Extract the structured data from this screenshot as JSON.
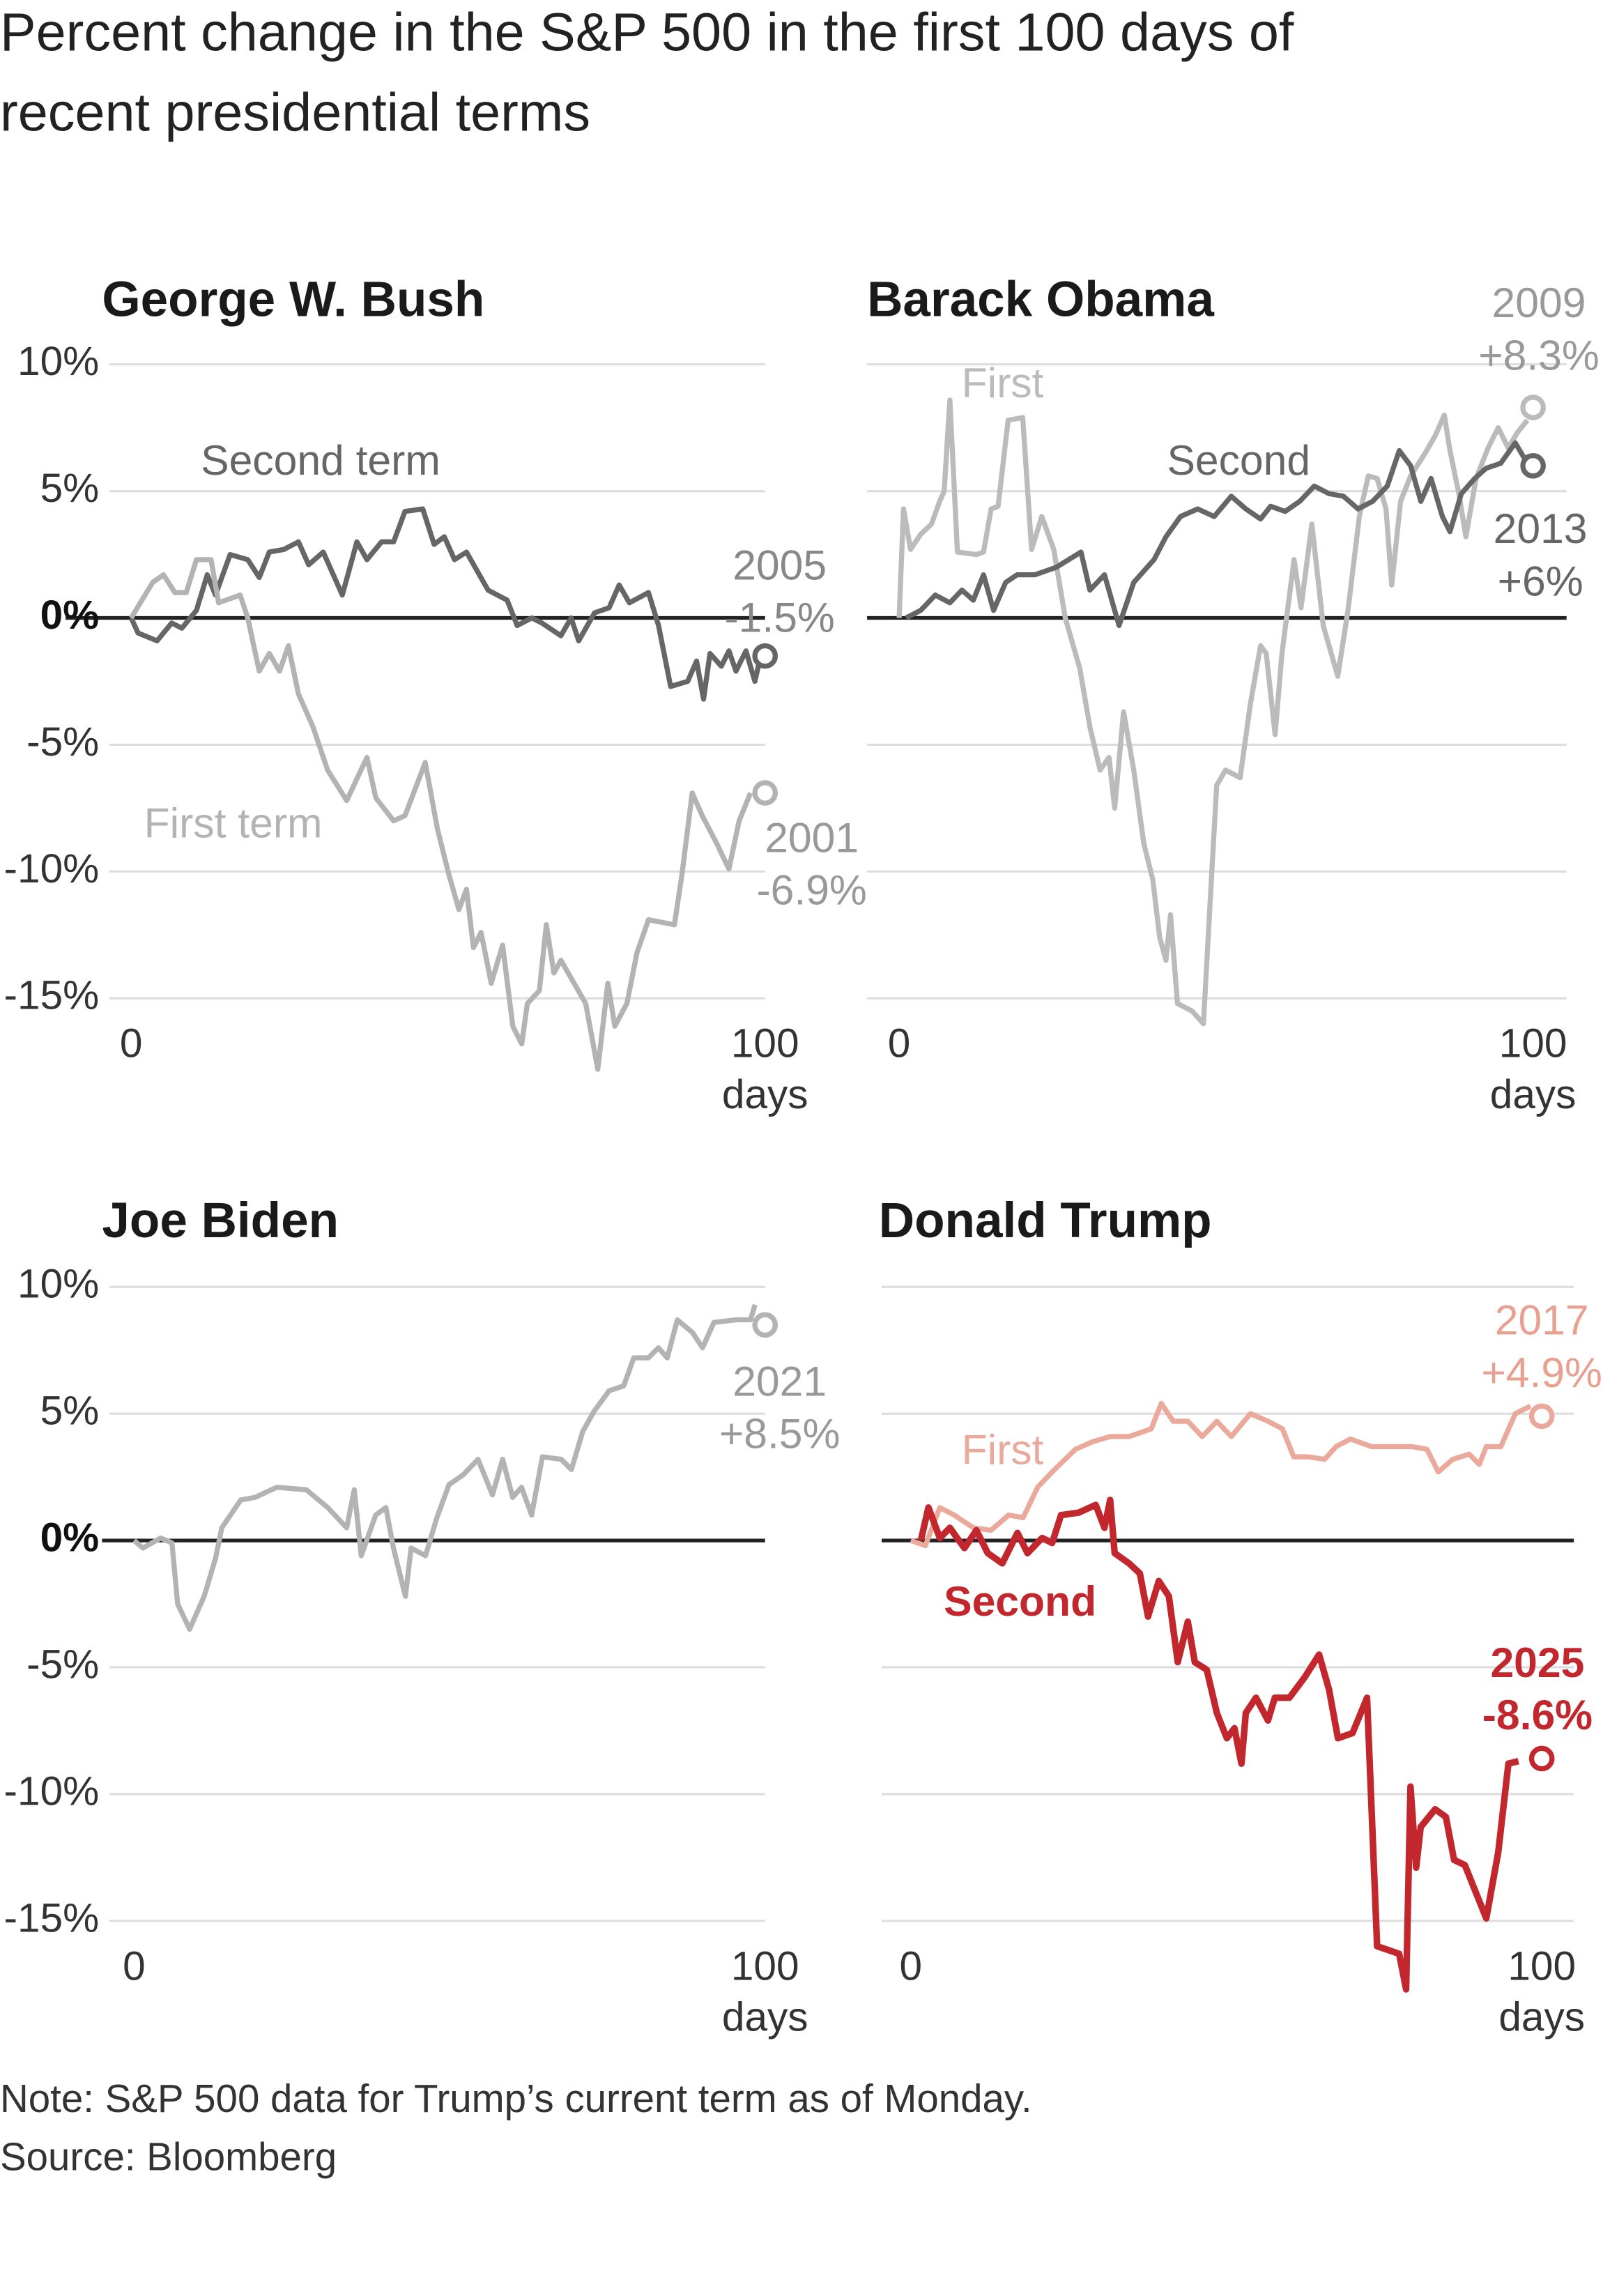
{
  "title": [
    "Percent change in the S&P 500 in the first 100 days of",
    "recent presidential terms"
  ],
  "note": "Note: S&P 500 data for Trump’s current term as of Monday.",
  "source": "Source: Bloomberg",
  "chart_data": [
    {
      "type": "line",
      "title": "George W. Bush",
      "xlim": [
        0,
        100
      ],
      "xticks": [
        0,
        100
      ],
      "xlabel": "days",
      "ylim": [
        -15,
        10
      ],
      "grid": true,
      "yticks": [
        {
          "value": 10,
          "label": "10%"
        },
        {
          "value": 5,
          "label": "5%"
        },
        {
          "value": 0,
          "label": "0%"
        },
        {
          "value": -5,
          "label": "-5%"
        },
        {
          "value": -10,
          "label": "-10%"
        },
        {
          "value": -15,
          "label": "-15%"
        }
      ],
      "series": [
        {
          "name": "Second term",
          "color": "#666666",
          "x": [
            0,
            1.1,
            4.1,
            6.4,
            8.0,
            10.3,
            12.0,
            13.3,
            14.3,
            15.6,
            18.4,
            20.2,
            21.8,
            24.1,
            26.4,
            28.0,
            30.3,
            33.3,
            35.6,
            37.2,
            39.5,
            41.4,
            43.2,
            46.0,
            47.8,
            49.4,
            51.0,
            52.9,
            56.3,
            59.3,
            60.9,
            63.2,
            64.8,
            67.8,
            69.4,
            70.6,
            73.1,
            75.4,
            77.0,
            78.6,
            81.6,
            83.2,
            85.1,
            87.8,
            89.2,
            90.3,
            91.3,
            93.1,
            94.3,
            95.4,
            97.0,
            98.4,
            99.3
          ],
          "values": [
            0,
            -0.6,
            -0.9,
            -0.2,
            -0.4,
            0.3,
            1.7,
            0.9,
            1.6,
            2.5,
            2.3,
            1.6,
            2.6,
            2.7,
            3.0,
            2.1,
            2.6,
            0.9,
            3.0,
            2.3,
            3.0,
            3.0,
            4.2,
            4.3,
            2.9,
            3.2,
            2.3,
            2.6,
            1.1,
            0.7,
            -0.3,
            0,
            -0.2,
            -0.7,
            0,
            -0.9,
            0.2,
            0.4,
            1.3,
            0.6,
            1.0,
            -0.3,
            -2.7,
            -2.5,
            -1.7,
            -3.2,
            -1.4,
            -1.9,
            -1.3,
            -2.1,
            -1.3,
            -2.5,
            -1.5
          ],
          "end": {
            "day": 100,
            "value": -1.5,
            "year": "2005",
            "value_label": "-1.5%"
          }
        },
        {
          "name": "First term",
          "color": "#b3b3b3",
          "x": [
            0,
            3.4,
            5.1,
            6.9,
            8.7,
            10.3,
            12.6,
            13.8,
            17.2,
            18.4,
            20.2,
            21.8,
            23.4,
            24.8,
            26.4,
            28.7,
            31.0,
            34.0,
            37.2,
            38.6,
            41.4,
            43.2,
            46.4,
            48.3,
            50.1,
            51.7,
            52.9,
            54.0,
            55.2,
            56.8,
            58.6,
            60.2,
            61.6,
            62.5,
            64.4,
            65.5,
            66.7,
            67.8,
            71.7,
            73.6,
            75.2,
            76.3,
            78.2,
            79.8,
            81.6,
            85.7,
            86.9,
            88.5,
            90.1,
            92.4,
            94.3,
            95.9,
            97.7
          ],
          "values": [
            0,
            1.4,
            1.7,
            1.0,
            1.0,
            2.3,
            2.3,
            0.6,
            0.9,
            0,
            -2.1,
            -1.4,
            -2.1,
            -1.1,
            -3.0,
            -4.3,
            -6.0,
            -7.2,
            -5.5,
            -7.1,
            -8.0,
            -7.8,
            -5.7,
            -8.3,
            -10.1,
            -11.5,
            -10.7,
            -13.0,
            -12.4,
            -14.4,
            -12.9,
            -16.1,
            -16.8,
            -15.2,
            -14.7,
            -12.1,
            -14.0,
            -13.5,
            -15.2,
            -17.8,
            -14.4,
            -16.1,
            -15.2,
            -13.2,
            -11.9,
            -12.1,
            -10.1,
            -6.9,
            -7.8,
            -8.9,
            -9.9,
            -8.0,
            -6.9
          ],
          "end": {
            "day": 100,
            "value": -6.9,
            "year": "2001",
            "value_label": "-6.9%"
          }
        }
      ]
    },
    {
      "type": "line",
      "title": "Barack Obama",
      "xlim": [
        0,
        100
      ],
      "xticks": [
        0,
        100
      ],
      "xlabel": "days",
      "ylim": [
        -15,
        10
      ],
      "grid": true,
      "yticks": [
        10,
        5,
        0,
        -5,
        -10,
        -15
      ],
      "series": [
        {
          "name": "First",
          "color": "#bbbbbb",
          "x": [
            0,
            0.7,
            1.8,
            3.4,
            5.1,
            6.4,
            7.1,
            8.0,
            9.2,
            12.2,
            13.3,
            14.5,
            15.6,
            17.2,
            19.5,
            20.9,
            22.5,
            24.4,
            26.2,
            28.5,
            30.1,
            31.7,
            33.1,
            34.0,
            35.4,
            37.0,
            38.6,
            40.0,
            41.1,
            42.1,
            42.8,
            43.9,
            46.2,
            48.0,
            49.2,
            50.1,
            51.5,
            53.8,
            55.4,
            57.0,
            57.9,
            59.3,
            60.4,
            62.3,
            63.4,
            65.1,
            66.9,
            69.2,
            70.8,
            72.6,
            74.0,
            75.4,
            76.8,
            77.7,
            79.1,
            80.7,
            83.0,
            84.6,
            86.0,
            86.9,
            88.3,
            89.4,
            91.0,
            92.9,
            94.5,
            96.1,
            97.5,
            99.1
          ],
          "values": [
            0,
            4.3,
            2.7,
            3.3,
            3.7,
            4.6,
            5.0,
            8.6,
            2.6,
            2.5,
            2.6,
            4.3,
            4.4,
            7.8,
            7.9,
            2.7,
            4.0,
            2.7,
            0,
            -2.0,
            -4.3,
            -6.0,
            -5.5,
            -7.5,
            -3.7,
            -6.0,
            -8.9,
            -10.3,
            -12.6,
            -13.5,
            -11.7,
            -15.2,
            -15.5,
            -16.0,
            -10.6,
            -6.6,
            -6.0,
            -6.3,
            -3.4,
            -1.1,
            -1.4,
            -4.6,
            -1.4,
            2.3,
            0.4,
            3.7,
            -0.3,
            -2.3,
            0.3,
            4.0,
            5.6,
            5.5,
            4.3,
            1.3,
            4.6,
            5.6,
            6.5,
            7.2,
            8.0,
            6.6,
            4.9,
            3.2,
            5.5,
            6.7,
            7.5,
            6.7,
            7.3,
            7.8
          ],
          "end": {
            "day": 100,
            "value": 8.3,
            "year": "2009",
            "value_label": "+8.3%"
          }
        },
        {
          "name": "Second",
          "color": "#666666",
          "x": [
            1.1,
            3.4,
            5.7,
            8.0,
            9.9,
            11.7,
            13.3,
            14.9,
            16.8,
            18.6,
            21.4,
            24.8,
            28.7,
            30.1,
            32.4,
            34.7,
            37.0,
            40.2,
            42.1,
            44.4,
            47.1,
            49.7,
            52.4,
            54.7,
            57.0,
            58.6,
            60.9,
            63.2,
            65.5,
            67.8,
            70.1,
            72.4,
            74.7,
            77.0,
            78.9,
            80.7,
            82.3,
            83.9,
            85.7,
            86.9,
            88.7,
            90.8,
            92.6,
            94.9,
            97.2,
            99.1
          ],
          "values": [
            0,
            0.3,
            0.9,
            0.6,
            1.1,
            0.7,
            1.7,
            0.3,
            1.4,
            1.7,
            1.7,
            2.0,
            2.6,
            1.1,
            1.7,
            -0.3,
            1.4,
            2.3,
            3.2,
            4.0,
            4.3,
            4.0,
            4.8,
            4.3,
            3.9,
            4.4,
            4.2,
            4.6,
            5.2,
            4.9,
            4.8,
            4.3,
            4.6,
            5.2,
            6.6,
            6.0,
            4.6,
            5.5,
            4.0,
            3.4,
            4.9,
            5.5,
            5.9,
            6.1,
            6.9,
            6.1
          ],
          "end": {
            "day": 100,
            "value": 6,
            "year": "2013",
            "value_label": "+6%"
          }
        }
      ]
    },
    {
      "type": "line",
      "title": "Joe Biden",
      "xlim": [
        0,
        100
      ],
      "xticks": [
        0,
        100
      ],
      "xlabel": "days",
      "ylim": [
        -15,
        10
      ],
      "grid": true,
      "yticks": [
        {
          "value": 10,
          "label": "10%"
        },
        {
          "value": 5,
          "label": "5%"
        },
        {
          "value": 0,
          "label": "0%"
        },
        {
          "value": -5,
          "label": "-5%"
        },
        {
          "value": -10,
          "label": "-10%"
        },
        {
          "value": -15,
          "label": "-15%"
        }
      ],
      "series": [
        {
          "color": "#b3b3b3",
          "x": [
            0,
            1.4,
            4.2,
            6.0,
            6.9,
            8.8,
            11.1,
            12.9,
            13.9,
            16.9,
            19.2,
            22.6,
            27.3,
            30.7,
            33.7,
            34.9,
            36.0,
            38.3,
            39.9,
            41.1,
            43.0,
            43.9,
            46.2,
            48.0,
            49.9,
            52.2,
            54.5,
            56.8,
            58.4,
            60.0,
            61.4,
            63.0,
            64.7,
            67.7,
            69.3,
            71.1,
            72.9,
            75.3,
            77.6,
            79.2,
            81.5,
            83.1,
            84.5,
            86.1,
            88.5,
            90.1,
            91.9,
            95.4,
            97.7,
            98.4
          ],
          "values": [
            0,
            -0.3,
            0.1,
            -0.1,
            -2.5,
            -3.5,
            -2.2,
            -0.7,
            0.5,
            1.6,
            1.7,
            2.1,
            2.0,
            1.3,
            0.5,
            2.0,
            -0.6,
            1.0,
            1.3,
            -0.3,
            -2.2,
            -0.3,
            -0.6,
            0.9,
            2.2,
            2.6,
            3.2,
            1.8,
            3.2,
            1.7,
            2.1,
            1.0,
            3.3,
            3.2,
            2.8,
            4.3,
            5.1,
            5.9,
            6.1,
            7.2,
            7.2,
            7.6,
            7.2,
            8.7,
            8.2,
            7.6,
            8.6,
            8.7,
            8.7,
            9.3
          ],
          "end": {
            "day": 100,
            "value": 8.5,
            "year": "2021",
            "value_label": "+8.5%"
          }
        }
      ]
    },
    {
      "type": "line",
      "title": "Donald Trump",
      "xlim": [
        0,
        100
      ],
      "xticks": [
        0,
        100
      ],
      "xlabel": "days",
      "ylim": [
        -15,
        10
      ],
      "grid": true,
      "yticks": [
        10,
        5,
        0,
        -5,
        -10,
        -15
      ],
      "series": [
        {
          "name": "First",
          "color": "#eba99c",
          "x": [
            0,
            2.3,
            4.6,
            6.9,
            9.9,
            12.7,
            15.5,
            17.8,
            20.1,
            22.4,
            26.1,
            28.9,
            31.6,
            34.6,
            38.1,
            39.7,
            41.6,
            43.9,
            46.2,
            48.5,
            50.8,
            53.8,
            56.6,
            58.9,
            60.7,
            63.0,
            65.6,
            67.4,
            69.7,
            73.0,
            76.0,
            79.4,
            81.8,
            83.6,
            85.9,
            88.5,
            90.1,
            91.2,
            93.5,
            95.8,
            98.2
          ],
          "values": [
            0,
            -0.2,
            1.3,
            1.0,
            0.5,
            0.4,
            1.0,
            0.9,
            2.1,
            2.7,
            3.6,
            3.9,
            4.1,
            4.1,
            4.4,
            5.4,
            4.7,
            4.7,
            4.1,
            4.7,
            4.1,
            5.0,
            4.7,
            4.4,
            3.3,
            3.3,
            3.2,
            3.7,
            4.0,
            3.7,
            3.7,
            3.7,
            3.6,
            2.7,
            3.2,
            3.4,
            3.0,
            3.7,
            3.7,
            5.0,
            5.3
          ],
          "end": {
            "day": 100,
            "value": 4.9,
            "year": "2017",
            "value_label": "+4.9%"
          }
        },
        {
          "name": "Second",
          "color": "#c1272d",
          "x": [
            1.6,
            2.8,
            4.6,
            6.2,
            8.5,
            10.4,
            12.2,
            14.5,
            16.9,
            18.5,
            20.8,
            22.4,
            23.8,
            26.6,
            29.3,
            30.7,
            31.6,
            32.3,
            34.6,
            36.3,
            37.6,
            39.3,
            40.9,
            42.3,
            43.9,
            45.0,
            46.9,
            48.5,
            50.1,
            51.3,
            52.4,
            53.1,
            54.7,
            56.6,
            57.7,
            60.0,
            62.4,
            64.7,
            66.3,
            67.7,
            70.0,
            72.3,
            73.9,
            77.4,
            78.5,
            79.2,
            80.1,
            80.8,
            83.1,
            84.8,
            86.1,
            87.8,
            91.2,
            93.1,
            94.7,
            96.3
          ],
          "values": [
            0,
            1.3,
            0.1,
            0.5,
            -0.3,
            0.4,
            -0.5,
            -0.9,
            0.3,
            -0.5,
            0.1,
            -0.1,
            1.0,
            1.1,
            1.4,
            0.5,
            1.6,
            -0.5,
            -0.9,
            -1.3,
            -3.0,
            -1.6,
            -2.2,
            -4.8,
            -3.2,
            -4.8,
            -5.1,
            -6.8,
            -7.8,
            -7.4,
            -8.8,
            -6.8,
            -6.2,
            -7.1,
            -6.2,
            -6.2,
            -5.4,
            -4.5,
            -5.9,
            -7.8,
            -7.6,
            -6.2,
            -16.0,
            -16.3,
            -17.7,
            -9.7,
            -12.9,
            -11.3,
            -10.6,
            -10.9,
            -12.6,
            -12.8,
            -14.9,
            -12.3,
            -8.8,
            -8.7
          ],
          "end": {
            "day": 100,
            "value": -8.6,
            "year": "2025",
            "value_label": "-8.6%"
          }
        }
      ]
    }
  ]
}
